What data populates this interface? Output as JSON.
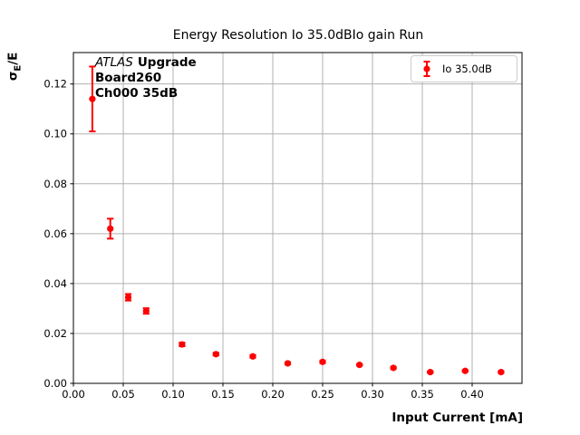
{
  "figure": {
    "title": "Energy Resolution Io 35.0dBIo gain Run"
  },
  "annotation": {
    "experiment": "ATLAS",
    "label": "Upgrade",
    "board": "Board260",
    "channel": "Ch000 35dB"
  },
  "legend": {
    "label": "Io 35.0dB",
    "position": "upper right"
  },
  "chart_data": {
    "type": "scatter",
    "title": "Energy Resolution Io 35.0dBIo gain Run",
    "xlabel": "Input Current [mA]",
    "ylabel": "σE/E",
    "ylabel_parts": {
      "sigma": "σ",
      "sub": "E",
      "rest": "/E"
    },
    "grid": true,
    "legend_position": "upper right",
    "xlim": [
      0,
      0.45
    ],
    "ylim": [
      0,
      0.1326
    ],
    "x_ticks": [
      0.0,
      0.05,
      0.1,
      0.15,
      0.2,
      0.25,
      0.3,
      0.35,
      0.4
    ],
    "x_tick_labels": [
      "0.00",
      "0.05",
      "0.10",
      "0.15",
      "0.20",
      "0.25",
      "0.30",
      "0.35",
      "0.40"
    ],
    "y_ticks": [
      0.0,
      0.02,
      0.04,
      0.06,
      0.08,
      0.1,
      0.12
    ],
    "y_tick_labels": [
      "0.00",
      "0.02",
      "0.04",
      "0.06",
      "0.08",
      "0.10",
      "0.12"
    ],
    "series": [
      {
        "name": "Io 35.0dB",
        "marker": "circle-with-errorbars",
        "color": "#ff0000",
        "x": [
          0.019,
          0.037,
          0.055,
          0.073,
          0.109,
          0.143,
          0.18,
          0.215,
          0.25,
          0.287,
          0.321,
          0.358,
          0.393,
          0.429
        ],
        "y": [
          0.114,
          0.062,
          0.0345,
          0.029,
          0.0156,
          0.0117,
          0.0108,
          0.008,
          0.0086,
          0.0074,
          0.0062,
          0.0045,
          0.005,
          0.0045
        ],
        "yerr": [
          0.013,
          0.004,
          0.0013,
          0.0011,
          0.0007,
          0.0005,
          0.0005,
          0.0004,
          0.0004,
          0.0003,
          0.0003,
          0.0003,
          0.0003,
          0.0003
        ]
      }
    ],
    "colors": {
      "series": "#ff0000",
      "grid": "#b0b0b0",
      "spine": "#000000",
      "legend_border": "#cccccc",
      "background": "#ffffff"
    }
  }
}
